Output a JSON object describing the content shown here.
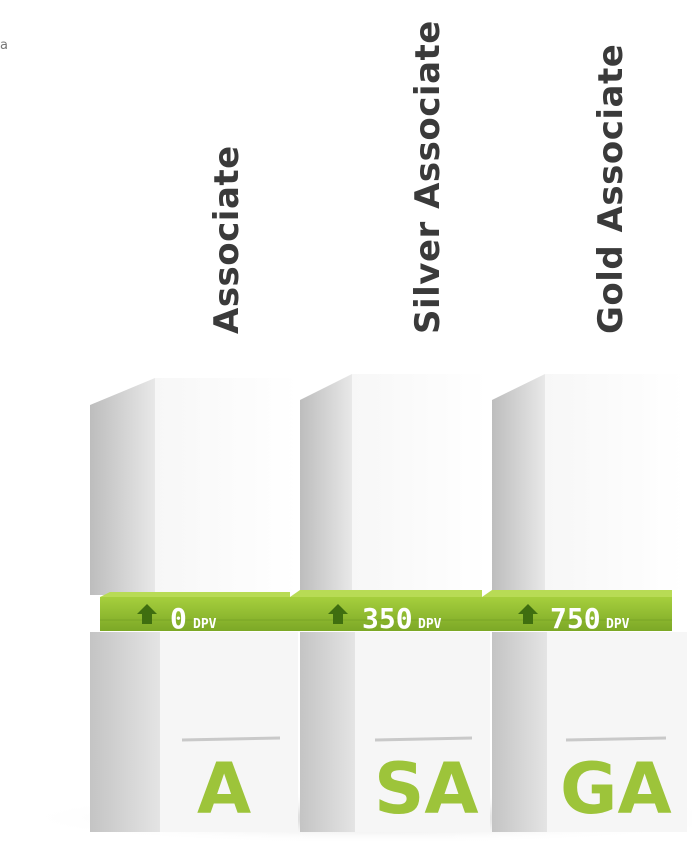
{
  "corner_glyph": "a",
  "levels": [
    {
      "title": "Associate",
      "dpv_value": "0",
      "dpv_unit": "DPV",
      "abbr": "A"
    },
    {
      "title": "Silver Associate",
      "dpv_value": "350",
      "dpv_unit": "DPV",
      "abbr": "SA"
    },
    {
      "title": "Gold Associate",
      "dpv_value": "750",
      "dpv_unit": "DPV",
      "abbr": "GA"
    }
  ],
  "colors": {
    "band_green": "#8dbb2c",
    "band_green_dark": "#5f8a1a",
    "abbr_green": "#9dc43a",
    "block_light": "#f4f4f4",
    "block_side": "#c9c9c9",
    "title_text": "#3a3a3a"
  },
  "icons": [
    "up-arrow-icon"
  ]
}
